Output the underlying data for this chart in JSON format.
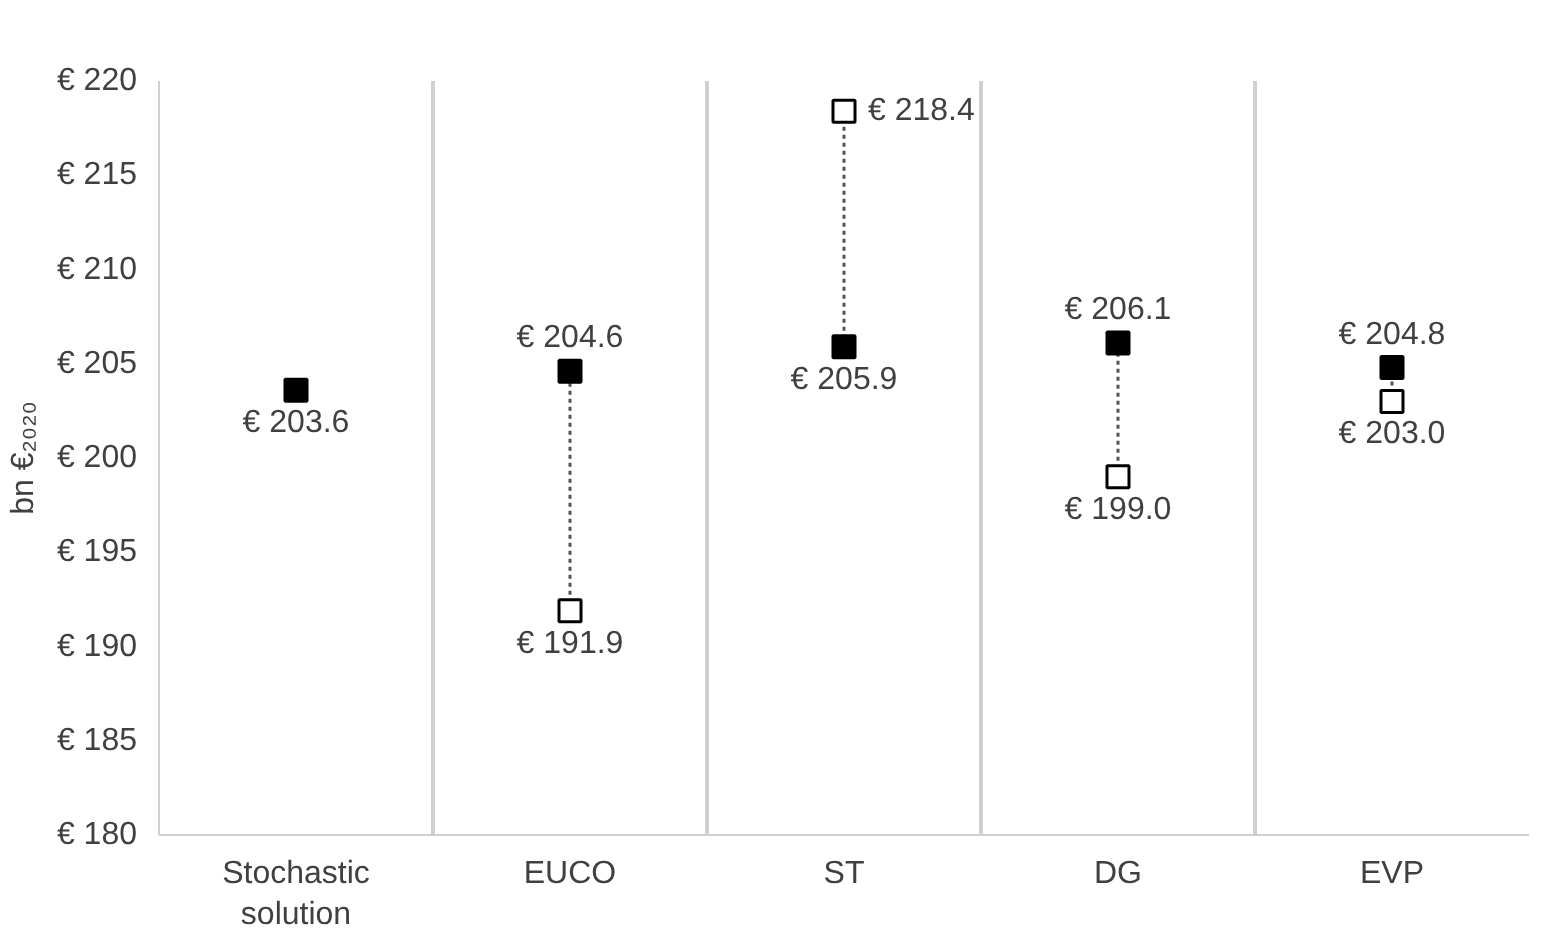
{
  "chart_data": {
    "type": "scatter",
    "ylabel": "bn €₂₀₂₀",
    "categories": [
      "Stochastic\nsolution",
      "EUCO",
      "ST",
      "DG",
      "EVP"
    ],
    "series": [
      {
        "color": "#000000",
        "values": [
          203.6,
          204.6,
          205.9,
          206.1,
          204.8
        ],
        "value_labels": [
          "€ 203.6",
          "€ 204.6",
          "€ 205.9",
          "€ 206.1",
          "€ 204.8"
        ]
      },
      {
        "color": "#ffffff",
        "values": [
          null,
          191.9,
          218.4,
          199.0,
          203.0
        ],
        "value_labels": [
          null,
          "€ 191.9",
          "€ 218.4",
          "€ 199.0",
          "€ 203.0"
        ]
      }
    ],
    "ylim": [
      180,
      220
    ],
    "yticks": [
      {
        "value": 180,
        "label": "€ 180"
      },
      {
        "value": 185,
        "label": "€ 185"
      },
      {
        "value": 190,
        "label": "€ 190"
      },
      {
        "value": 195,
        "label": "€ 195"
      },
      {
        "value": 200,
        "label": "€ 200"
      },
      {
        "value": 205,
        "label": "€ 205"
      },
      {
        "value": 210,
        "label": "€ 210"
      },
      {
        "value": 215,
        "label": "€ 215"
      },
      {
        "value": 220,
        "label": "€ 220"
      }
    ],
    "grid": "x",
    "marker": "square",
    "line_style": "dotted"
  }
}
